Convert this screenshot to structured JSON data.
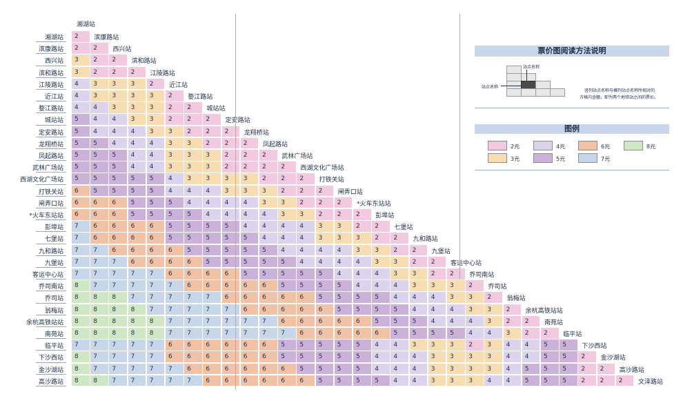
{
  "stations": [
    "湘湖站",
    "滨康路站",
    "西兴站",
    "滨和路站",
    "江陵路站",
    "近江站",
    "婺江路站",
    "城站站",
    "定安路站",
    "龙翔桥站",
    "凤起路站",
    "武林广场站",
    "西湖文化广场站",
    "打铁关站",
    "闸弄口站",
    "*火车东站站",
    "彭埠站",
    "七堡站",
    "九和路站",
    "九堡站",
    "客运中心站",
    "乔司南站",
    "乔司站",
    "翁梅站",
    "余杭高铁站站",
    "南苑站",
    "临平站",
    "下沙西站",
    "金沙湖站",
    "高沙路站",
    "文泽路站"
  ],
  "fare_rows": [
    [
      2
    ],
    [
      2,
      2
    ],
    [
      3,
      2,
      2
    ],
    [
      3,
      2,
      2,
      2
    ],
    [
      4,
      3,
      3,
      3,
      2
    ],
    [
      4,
      3,
      3,
      3,
      3,
      2
    ],
    [
      4,
      4,
      3,
      3,
      3,
      2,
      2
    ],
    [
      5,
      4,
      4,
      3,
      3,
      2,
      2,
      2
    ],
    [
      5,
      4,
      4,
      4,
      3,
      3,
      2,
      2,
      2
    ],
    [
      5,
      5,
      4,
      4,
      4,
      3,
      3,
      2,
      2,
      2
    ],
    [
      5,
      5,
      5,
      4,
      4,
      3,
      3,
      3,
      2,
      2,
      2
    ],
    [
      5,
      5,
      5,
      4,
      4,
      3,
      3,
      3,
      2,
      2,
      2,
      2
    ],
    [
      5,
      5,
      5,
      5,
      5,
      4,
      3,
      3,
      3,
      3,
      2,
      2,
      2
    ],
    [
      6,
      5,
      5,
      5,
      5,
      4,
      4,
      4,
      3,
      3,
      3,
      2,
      2,
      2
    ],
    [
      6,
      6,
      6,
      5,
      5,
      5,
      4,
      4,
      4,
      4,
      3,
      3,
      2,
      2,
      2
    ],
    [
      6,
      6,
      6,
      5,
      5,
      5,
      5,
      4,
      4,
      4,
      4,
      3,
      3,
      2,
      2,
      2
    ],
    [
      7,
      6,
      6,
      6,
      6,
      5,
      5,
      5,
      5,
      4,
      4,
      4,
      4,
      3,
      3,
      2,
      2
    ],
    [
      7,
      6,
      6,
      6,
      6,
      5,
      5,
      5,
      5,
      5,
      4,
      4,
      4,
      3,
      3,
      3,
      2,
      2
    ],
    [
      7,
      7,
      6,
      6,
      6,
      6,
      5,
      5,
      5,
      5,
      5,
      4,
      4,
      4,
      4,
      3,
      3,
      2,
      2
    ],
    [
      7,
      7,
      7,
      6,
      6,
      6,
      6,
      5,
      5,
      5,
      5,
      5,
      4,
      4,
      4,
      4,
      3,
      3,
      2,
      2
    ],
    [
      7,
      7,
      7,
      7,
      7,
      6,
      6,
      6,
      6,
      5,
      5,
      5,
      5,
      5,
      4,
      4,
      4,
      3,
      3,
      2,
      2
    ],
    [
      8,
      7,
      7,
      7,
      7,
      7,
      6,
      6,
      6,
      6,
      6,
      5,
      5,
      5,
      5,
      4,
      4,
      4,
      3,
      3,
      3,
      2
    ],
    [
      8,
      8,
      8,
      7,
      7,
      7,
      7,
      7,
      6,
      6,
      6,
      6,
      6,
      5,
      5,
      5,
      5,
      4,
      4,
      4,
      3,
      3,
      2
    ],
    [
      8,
      8,
      8,
      8,
      7,
      7,
      7,
      7,
      7,
      6,
      6,
      6,
      6,
      6,
      5,
      5,
      5,
      5,
      4,
      4,
      4,
      3,
      3,
      2
    ],
    [
      8,
      8,
      8,
      8,
      8,
      7,
      7,
      7,
      7,
      7,
      7,
      6,
      6,
      6,
      6,
      6,
      5,
      5,
      5,
      4,
      4,
      4,
      3,
      2,
      2
    ],
    [
      8,
      8,
      8,
      8,
      8,
      7,
      7,
      7,
      7,
      7,
      7,
      7,
      6,
      6,
      6,
      6,
      6,
      5,
      5,
      5,
      5,
      4,
      4,
      3,
      2,
      2
    ],
    [
      7,
      7,
      7,
      7,
      7,
      6,
      6,
      6,
      6,
      6,
      6,
      5,
      5,
      5,
      5,
      5,
      4,
      4,
      3,
      3,
      3,
      2,
      3,
      4,
      4,
      5,
      5
    ],
    [
      8,
      7,
      7,
      7,
      7,
      6,
      6,
      6,
      6,
      6,
      6,
      5,
      5,
      5,
      5,
      5,
      4,
      4,
      4,
      3,
      3,
      3,
      3,
      4,
      4,
      5,
      5,
      2
    ],
    [
      8,
      7,
      7,
      7,
      7,
      7,
      6,
      6,
      6,
      6,
      6,
      6,
      5,
      5,
      5,
      5,
      4,
      4,
      4,
      3,
      3,
      3,
      3,
      4,
      5,
      5,
      5,
      2,
      2
    ],
    [
      8,
      8,
      7,
      7,
      7,
      7,
      7,
      6,
      6,
      6,
      6,
      6,
      6,
      5,
      5,
      5,
      5,
      4,
      4,
      3,
      3,
      3,
      4,
      4,
      5,
      5,
      5,
      2,
      2,
      2
    ]
  ],
  "fare_colors": {
    "2": "#f2c9de",
    "3": "#f7ddb1",
    "4": "#dcd3ec",
    "5": "#ccb2d8",
    "6": "#f1c2a6",
    "7": "#c7d6e8",
    "8": "#cfe7c3"
  },
  "panel": {
    "title": "票价图阅读方法说明",
    "diagram_top_label": "站点名称",
    "diagram_left_label": "站点名称",
    "diagram_note_line1": "竖列站点名称与横列站点名称所相对的",
    "diagram_note_line2": "方格内金额，即为两个地铁站之间的票价。"
  },
  "legend": {
    "title": "图例",
    "items": [
      {
        "fare": "2",
        "label": "2元",
        "color": "#f2c9de"
      },
      {
        "fare": "4",
        "label": "4元",
        "color": "#dcd3ec"
      },
      {
        "fare": "6",
        "label": "6元",
        "color": "#f1c2a6"
      },
      {
        "fare": "8",
        "label": "8元",
        "color": "#cfe7c3"
      },
      {
        "fare": "3",
        "label": "3元",
        "color": "#f7ddb1"
      },
      {
        "fare": "5",
        "label": "5元",
        "color": "#ccb2d8"
      },
      {
        "fare": "7",
        "label": "7元",
        "color": "#c7d6e8"
      }
    ]
  }
}
